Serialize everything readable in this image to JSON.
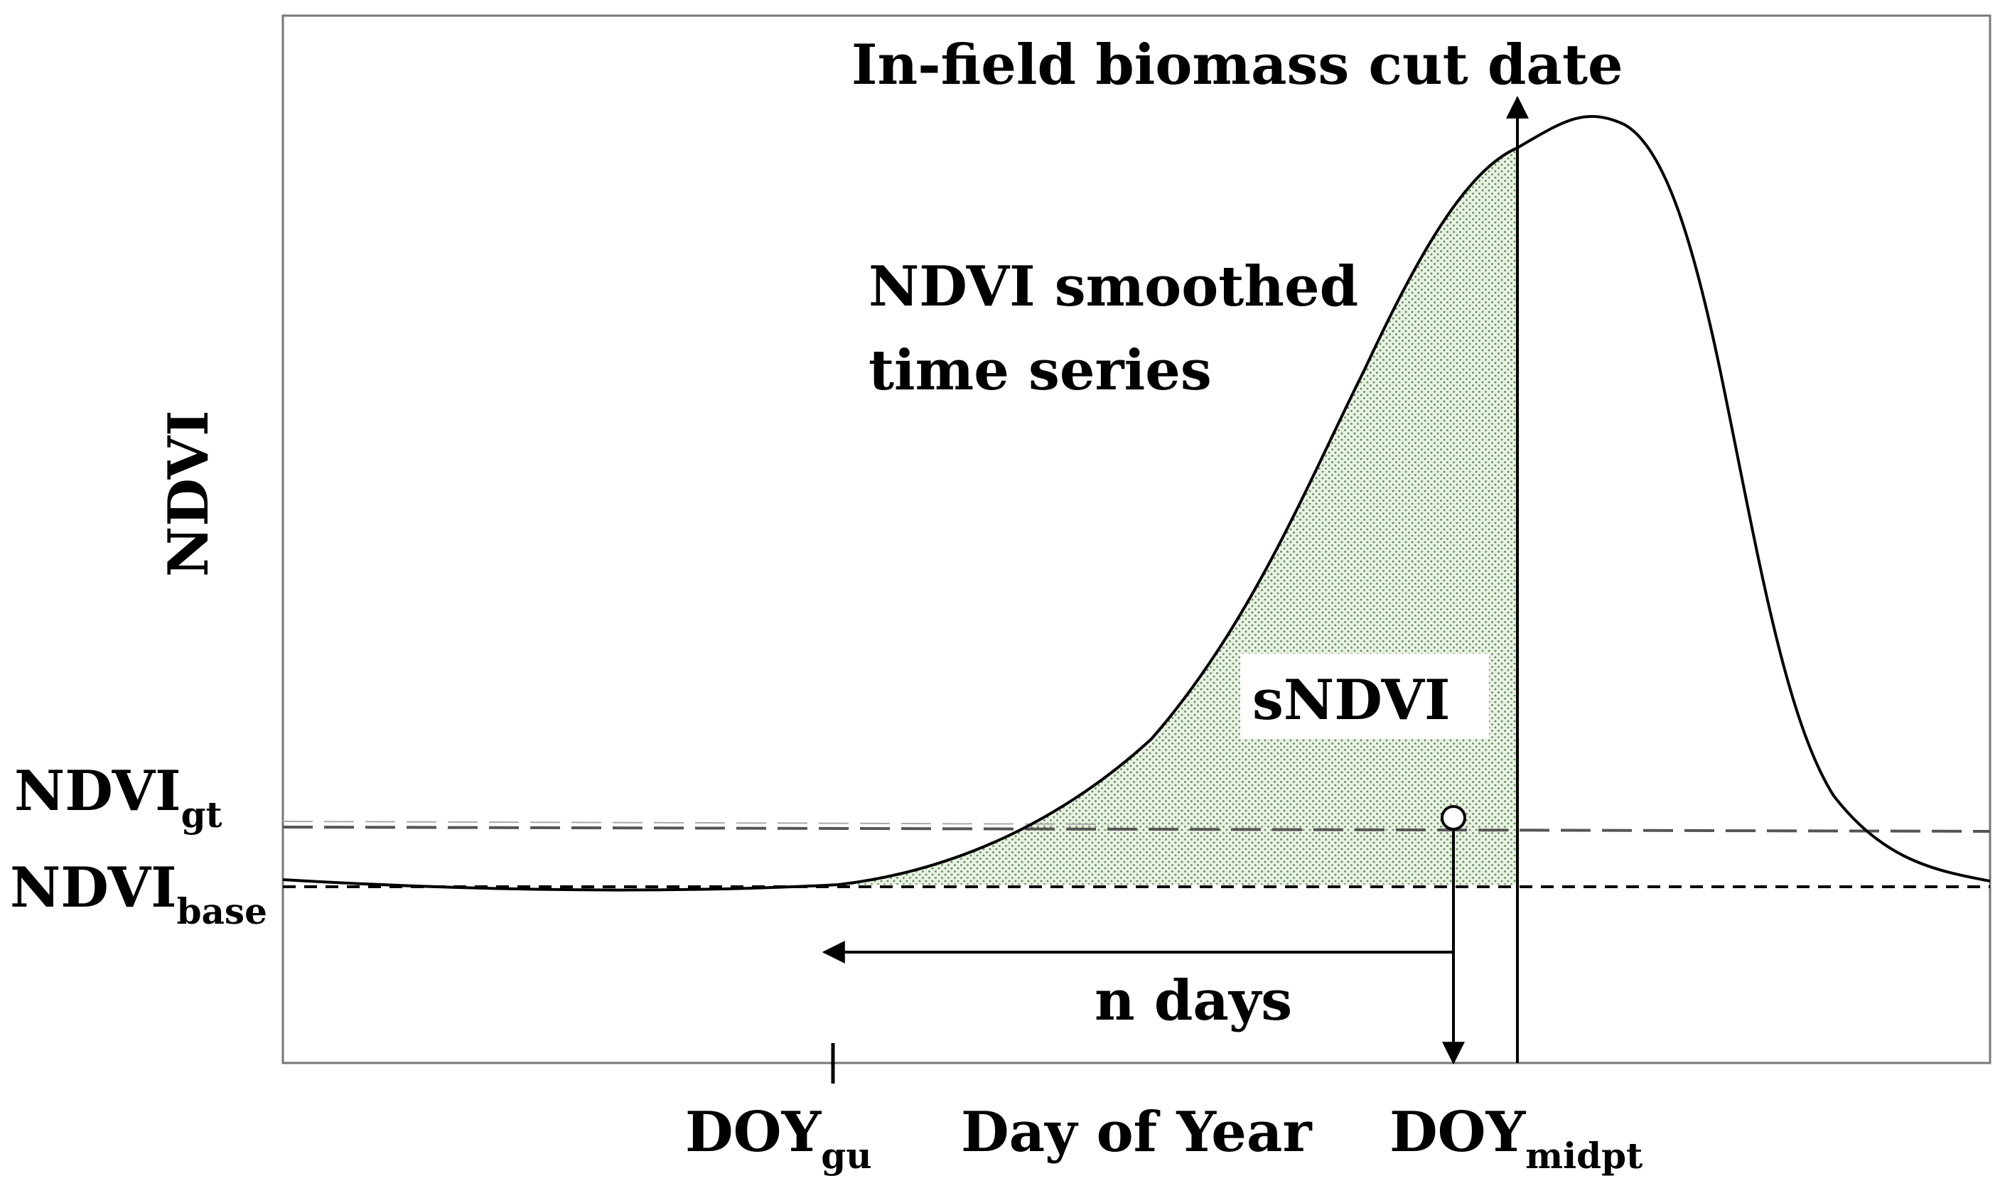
{
  "figure": {
    "y_axis_label": "NDVI",
    "x_axis_label": "Day of Year",
    "cut_date_label": "In-field biomass cut date",
    "curve_label_line1": "NDVI smoothed",
    "curve_label_line2": "time series",
    "area_label": "sNDVI",
    "n_days_label": "n days",
    "ndvi_gt": {
      "main": "NDVI",
      "sub": "gt"
    },
    "ndvi_base": {
      "main": "NDVI",
      "sub": "base"
    },
    "doy_gu": {
      "main": "DOY",
      "sub": "gu"
    },
    "doy_midpt": {
      "main": "DOY",
      "sub": "midpt"
    }
  },
  "colors": {
    "line": "#000000",
    "fill_dots": "#5a8a4e",
    "fill_bg": "#e9f1e4",
    "gt_line": "#555555",
    "midpoint_marker": "#ffffff"
  }
}
